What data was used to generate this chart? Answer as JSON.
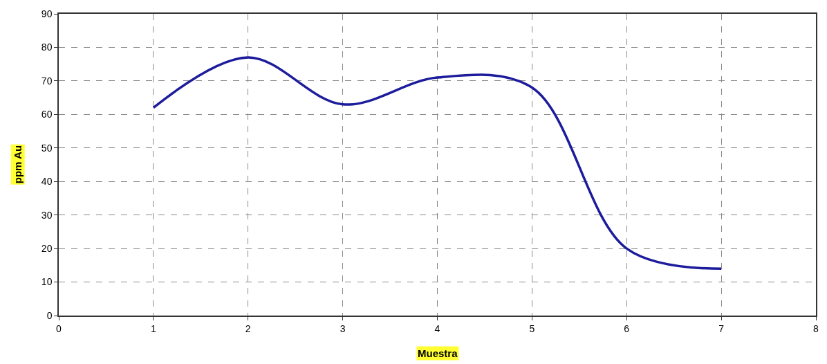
{
  "chart_data": {
    "type": "line",
    "xlabel": "Muestra",
    "ylabel": "ppm Au",
    "x": [
      1,
      2,
      3,
      4,
      5,
      6,
      7
    ],
    "series": [
      {
        "color": "#1c1c9c",
        "values": [
          62,
          77,
          63,
          71,
          68,
          20,
          14
        ]
      }
    ],
    "xlim": [
      0,
      8
    ],
    "xticks": [
      0,
      1,
      2,
      3,
      4,
      5,
      6,
      7,
      8
    ],
    "ylim": [
      0,
      90
    ],
    "yticks": [
      0,
      10,
      20,
      30,
      40,
      50,
      60,
      70,
      80,
      90
    ],
    "grid": true,
    "legend": false,
    "marker": "none",
    "line_style": "solid"
  }
}
